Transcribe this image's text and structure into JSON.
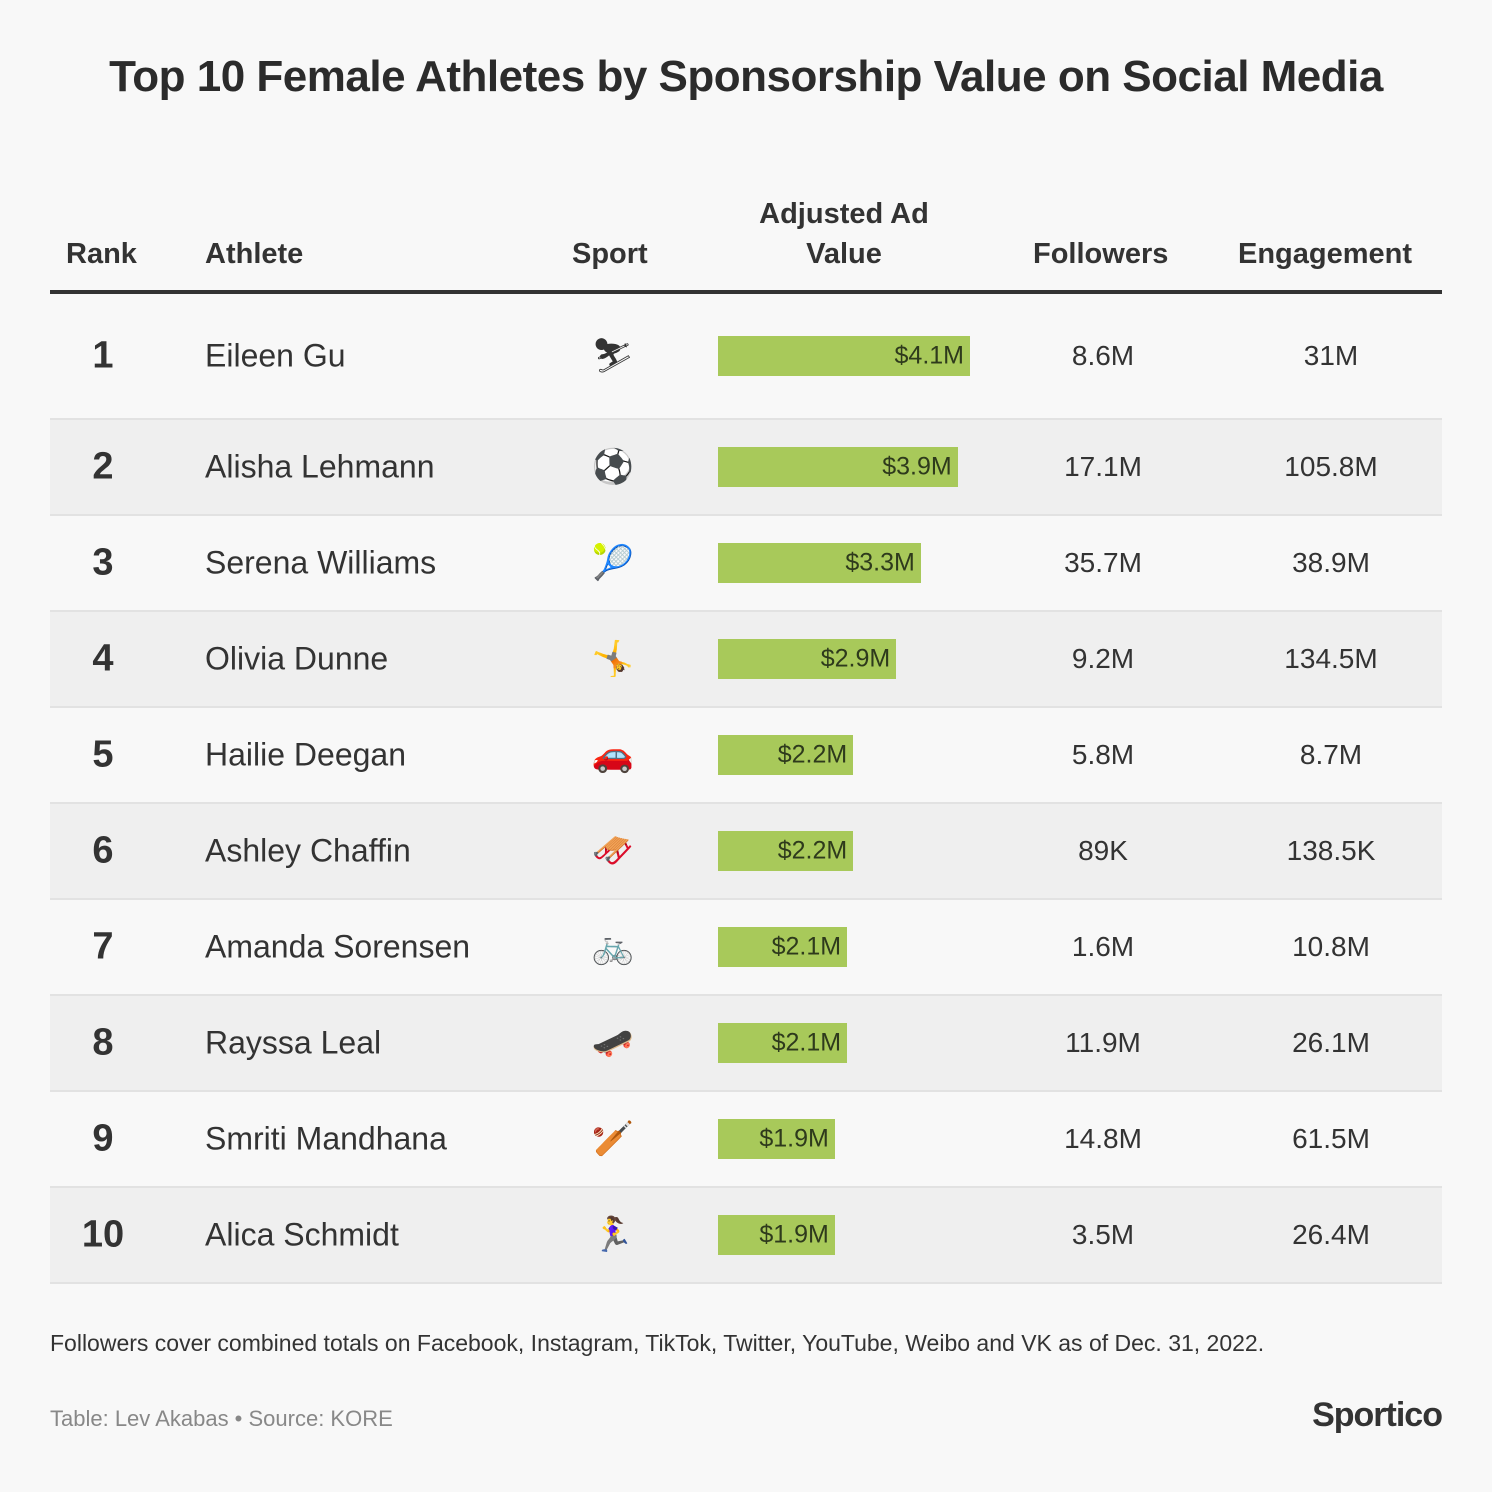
{
  "title": "Top 10 Female Athletes by Sponsorship Value on Social Media",
  "chart_data": {
    "type": "table",
    "columns": [
      "Rank",
      "Athlete",
      "Sport",
      "Adjusted Ad Value",
      "Followers",
      "Engagement"
    ],
    "bar_color": "#a8c95a",
    "rows": [
      {
        "rank": "1",
        "athlete": "Eileen Gu",
        "sport": "⛷",
        "sport_icon": "skier-icon",
        "value": 4.1,
        "value_label": "$4.1M",
        "followers": "8.6M",
        "engagement": "31M"
      },
      {
        "rank": "2",
        "athlete": "Alisha Lehmann",
        "sport": "⚽",
        "sport_icon": "soccer-ball-icon",
        "value": 3.9,
        "value_label": "$3.9M",
        "followers": "17.1M",
        "engagement": "105.8M"
      },
      {
        "rank": "3",
        "athlete": "Serena Williams",
        "sport": "🎾",
        "sport_icon": "tennis-icon",
        "value": 3.3,
        "value_label": "$3.3M",
        "followers": "35.7M",
        "engagement": "38.9M"
      },
      {
        "rank": "4",
        "athlete": "Olivia Dunne",
        "sport": "🤸",
        "sport_icon": "gymnastics-icon",
        "value": 2.9,
        "value_label": "$2.9M",
        "followers": "9.2M",
        "engagement": "134.5M"
      },
      {
        "rank": "5",
        "athlete": "Hailie Deegan",
        "sport": "🚗",
        "sport_icon": "car-icon",
        "value": 2.2,
        "value_label": "$2.2M",
        "followers": "5.8M",
        "engagement": "8.7M"
      },
      {
        "rank": "6",
        "athlete": "Ashley Chaffin",
        "sport": "🛷",
        "sport_icon": "snowmobile-icon",
        "value": 2.2,
        "value_label": "$2.2M",
        "followers": "89K",
        "engagement": "138.5K"
      },
      {
        "rank": "7",
        "athlete": "Amanda Sorensen",
        "sport": "🚲",
        "sport_icon": "bicycle-icon",
        "value": 2.1,
        "value_label": "$2.1M",
        "followers": "1.6M",
        "engagement": "10.8M"
      },
      {
        "rank": "8",
        "athlete": "Rayssa Leal",
        "sport": "🛹",
        "sport_icon": "skateboard-icon",
        "value": 2.1,
        "value_label": "$2.1M",
        "followers": "11.9M",
        "engagement": "26.1M"
      },
      {
        "rank": "9",
        "athlete": "Smriti Mandhana",
        "sport": "🏏",
        "sport_icon": "cricket-icon",
        "value": 1.9,
        "value_label": "$1.9M",
        "followers": "14.8M",
        "engagement": "61.5M"
      },
      {
        "rank": "10",
        "athlete": "Alica Schmidt",
        "sport": "🏃‍♀️",
        "sport_icon": "runner-icon",
        "value": 1.9,
        "value_label": "$1.9M",
        "followers": "3.5M",
        "engagement": "26.4M"
      }
    ]
  },
  "header": {
    "rank": "Rank",
    "athlete": "Athlete",
    "sport": "Sport",
    "value_line1": "Adjusted Ad",
    "value_line2": "Value",
    "followers": "Followers",
    "engagement": "Engagement"
  },
  "note": "Followers cover combined totals on Facebook, Instagram, TikTok, Twitter, YouTube, Weibo and VK as of Dec. 31, 2022.",
  "credit": "Table: Lev Akabas • Source: KORE",
  "logo": "Sportico"
}
